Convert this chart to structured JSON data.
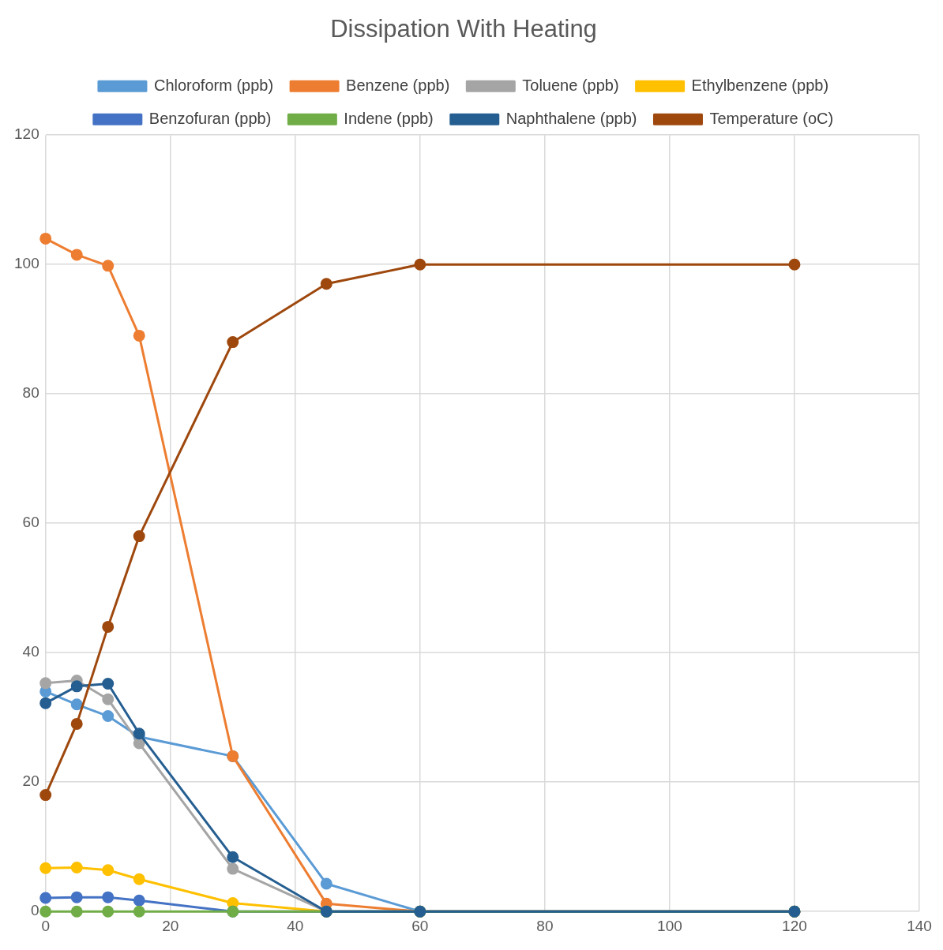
{
  "chart_data": {
    "type": "line",
    "title": "Dissipation With Heating",
    "x": [
      0,
      5,
      10,
      15,
      30,
      45,
      60,
      120
    ],
    "series": [
      {
        "name": "Chloroform (ppb)",
        "color": "#5b9bd5",
        "values": [
          34,
          32,
          30.2,
          27,
          24,
          4.3,
          0,
          0
        ]
      },
      {
        "name": "Benzene (ppb)",
        "color": "#ed7d31",
        "values": [
          104,
          101.5,
          99.8,
          89,
          24,
          1.2,
          0,
          0
        ]
      },
      {
        "name": "Toluene (ppb)",
        "color": "#a5a5a5",
        "values": [
          35.3,
          35.7,
          32.8,
          26,
          6.6,
          0,
          0,
          0
        ]
      },
      {
        "name": "Ethylbenzene (ppb)",
        "color": "#ffc000",
        "values": [
          6.7,
          6.8,
          6.4,
          5,
          1.3,
          0,
          0,
          0
        ]
      },
      {
        "name": "Benzofuran (ppb)",
        "color": "#4472c4",
        "values": [
          2.1,
          2.2,
          2.2,
          1.7,
          0,
          0,
          0,
          0
        ]
      },
      {
        "name": "Indene (ppb)",
        "color": "#70ad47",
        "values": [
          0,
          0,
          0,
          0,
          0,
          0,
          0,
          0
        ]
      },
      {
        "name": "Naphthalene (ppb)",
        "color": "#255e91",
        "values": [
          32.2,
          34.8,
          35.2,
          27.5,
          8.4,
          0,
          0,
          0
        ]
      },
      {
        "name": "Temperature (oC)",
        "color": "#9e480e",
        "values": [
          18,
          29,
          44,
          58,
          88,
          97,
          100,
          100
        ]
      }
    ],
    "xlim": [
      0,
      140
    ],
    "xticks": [
      0,
      20,
      40,
      60,
      80,
      100,
      120,
      140
    ],
    "ylim": [
      0,
      120
    ],
    "yticks": [
      0,
      20,
      40,
      60,
      80,
      100,
      120
    ],
    "grid": true,
    "legend": "top",
    "marker": "circle",
    "line_style": "solid"
  }
}
